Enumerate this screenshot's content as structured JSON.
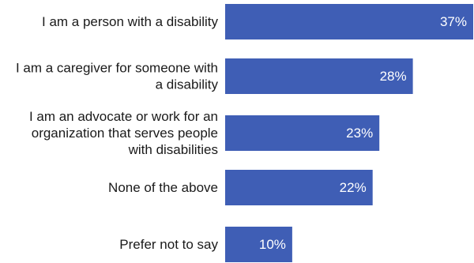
{
  "chart_data": {
    "type": "bar",
    "orientation": "horizontal",
    "categories": [
      [
        "I am a person with a disability"
      ],
      [
        "I am a caregiver for someone with",
        "a disability"
      ],
      [
        "I am an advocate or work for an",
        "organization that serves people",
        "with disabilities"
      ],
      [
        "None of the above"
      ],
      [
        "Prefer not to say"
      ]
    ],
    "values": [
      37,
      28,
      23,
      22,
      10
    ],
    "value_labels": [
      "37%",
      "28%",
      "23%",
      "22%",
      "10%"
    ],
    "unit": "%",
    "xlim": [
      0,
      37
    ],
    "grid": false,
    "legend": "none",
    "bar_color": "#3F5EB5"
  }
}
